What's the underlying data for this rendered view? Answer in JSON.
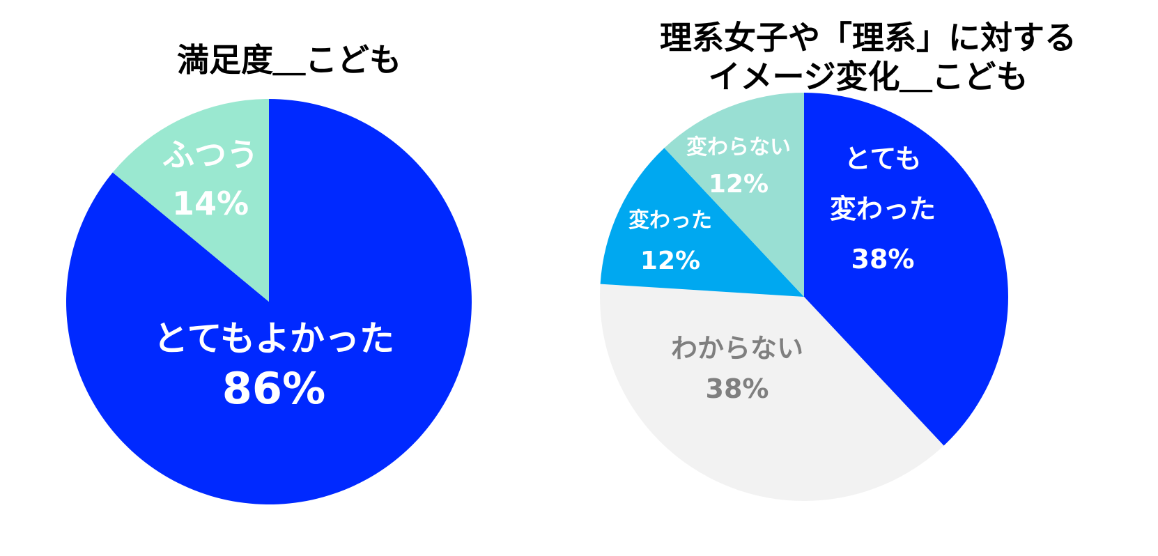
{
  "chart_data": [
    {
      "type": "pie",
      "title": "満足度＿こども",
      "categories": [
        "とてもよかった",
        "ふつう"
      ],
      "values": [
        86,
        14
      ],
      "value_labels": [
        "86%",
        "14%"
      ],
      "colors": [
        "#0029FF",
        "#9AE8D0"
      ],
      "label_colors": [
        "#FFFFFF",
        "#FFFFFF"
      ],
      "start_angle_deg": 0,
      "direction": "clockwise",
      "legend": "none"
    },
    {
      "type": "pie",
      "title_lines": [
        "理系女子や「理系」に対する",
        "イメージ変化＿こども"
      ],
      "categories": [
        "とても\n変わった",
        "わからない",
        "変わった",
        "変わらない"
      ],
      "values": [
        38,
        38,
        12,
        12
      ],
      "value_labels": [
        "38%",
        "38%",
        "12%",
        "12%"
      ],
      "colors": [
        "#0029FF",
        "#F2F2F2",
        "#00A8F0",
        "#99DFD3"
      ],
      "label_colors": [
        "#FFFFFF",
        "#7F7F7F",
        "#FFFFFF",
        "#FFFFFF"
      ],
      "start_angle_deg": 0,
      "direction": "clockwise",
      "legend": "none"
    }
  ]
}
